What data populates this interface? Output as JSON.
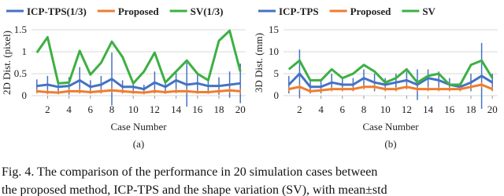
{
  "chart_data": [
    {
      "type": "line",
      "label": "(a)",
      "x_label": "Case Number",
      "y_label": "2D Dist. (pixel)",
      "x": [
        1,
        2,
        3,
        4,
        5,
        6,
        7,
        8,
        9,
        10,
        11,
        12,
        13,
        14,
        15,
        16,
        17,
        18,
        19,
        20
      ],
      "xlim": [
        0.5,
        20.5
      ],
      "xticks": [
        2,
        4,
        6,
        8,
        10,
        12,
        14,
        16,
        18,
        20
      ],
      "ylim": [
        0,
        1.5
      ],
      "yticks": [
        0,
        0.5,
        1,
        1.5
      ],
      "series": [
        {
          "name": "ICP-TPS(1/3)",
          "color": "#4472c4",
          "values": [
            0.22,
            0.25,
            0.2,
            0.22,
            0.35,
            0.2,
            0.25,
            0.38,
            0.2,
            0.2,
            0.15,
            0.3,
            0.2,
            0.35,
            0.25,
            0.28,
            0.22,
            0.22,
            0.25,
            0.28
          ],
          "errors": [
            0.15,
            0.2,
            0.12,
            0.2,
            0.3,
            0.15,
            0.2,
            0.6,
            0.15,
            0.12,
            0.1,
            0.25,
            0.15,
            0.2,
            0.5,
            0.2,
            0.15,
            0.2,
            0.3,
            0.45
          ]
        },
        {
          "name": "Proposed",
          "color": "#ed7d31",
          "values": [
            0.1,
            0.08,
            0.07,
            0.1,
            0.1,
            0.08,
            0.1,
            0.12,
            0.1,
            0.08,
            0.07,
            0.1,
            0.08,
            0.1,
            0.1,
            0.08,
            0.08,
            0.1,
            0.12,
            0.1
          ],
          "errors": [
            0.05,
            0.05,
            0.04,
            0.05,
            0.05,
            0.04,
            0.05,
            0.06,
            0.05,
            0.04,
            0.04,
            0.05,
            0.04,
            0.05,
            0.05,
            0.04,
            0.04,
            0.05,
            0.06,
            0.05
          ]
        },
        {
          "name": "SV(1/3)",
          "color": "#3cb043",
          "values": [
            0.98,
            1.33,
            0.28,
            0.3,
            1.02,
            0.48,
            0.75,
            1.23,
            0.88,
            0.28,
            0.55,
            0.98,
            0.3,
            0.55,
            0.8,
            0.5,
            0.35,
            1.25,
            1.48,
            0.55
          ]
        }
      ]
    },
    {
      "type": "line",
      "label": "(b)",
      "x_label": "Case Number",
      "y_label": "3D Dist. (mm)",
      "x": [
        1,
        2,
        3,
        4,
        5,
        6,
        7,
        8,
        9,
        10,
        11,
        12,
        13,
        14,
        15,
        16,
        17,
        18,
        19,
        20
      ],
      "xlim": [
        0.5,
        20.5
      ],
      "xticks": [
        2,
        4,
        6,
        8,
        10,
        12,
        14,
        16,
        18,
        20
      ],
      "ylim": [
        0,
        15
      ],
      "yticks": [
        0,
        5,
        10,
        15
      ],
      "series": [
        {
          "name": "ICP-TPS",
          "color": "#4472c4",
          "values": [
            2.5,
            5,
            2,
            2,
            3,
            2.5,
            2.5,
            4,
            3,
            2.5,
            3,
            3.5,
            2.5,
            4,
            3.5,
            2.5,
            2,
            3,
            4.5,
            3
          ],
          "errors": [
            2,
            5.5,
            1.5,
            1.5,
            2,
            1.5,
            1.5,
            2,
            2,
            1.5,
            2,
            2,
            3.5,
            2,
            2,
            1.5,
            1,
            2,
            7.5,
            2
          ]
        },
        {
          "name": "Proposed",
          "color": "#ed7d31",
          "values": [
            1.5,
            2,
            1,
            1.2,
            1.5,
            1.5,
            1.5,
            2,
            2,
            1.5,
            1.5,
            2,
            1.5,
            1.5,
            1.5,
            1.5,
            1.5,
            2,
            2.5,
            1.5
          ],
          "errors": [
            0.5,
            0.6,
            0.4,
            0.5,
            0.5,
            0.5,
            0.5,
            0.6,
            0.6,
            0.5,
            0.5,
            0.6,
            0.5,
            0.5,
            0.5,
            0.5,
            0.5,
            0.6,
            0.7,
            0.5
          ]
        },
        {
          "name": "SV",
          "color": "#3cb043",
          "values": [
            6,
            8,
            3.5,
            3.5,
            6,
            4,
            5,
            7,
            5.5,
            3,
            4,
            6,
            3,
            4.5,
            5,
            2.5,
            2.5,
            7,
            8,
            4
          ]
        }
      ]
    }
  ],
  "caption": [
    "Fig. 4.   The comparison of the performance in 20 simulation cases between",
    "the proposed method, ICP-TPS and the shape variation (SV), with mean±std"
  ]
}
